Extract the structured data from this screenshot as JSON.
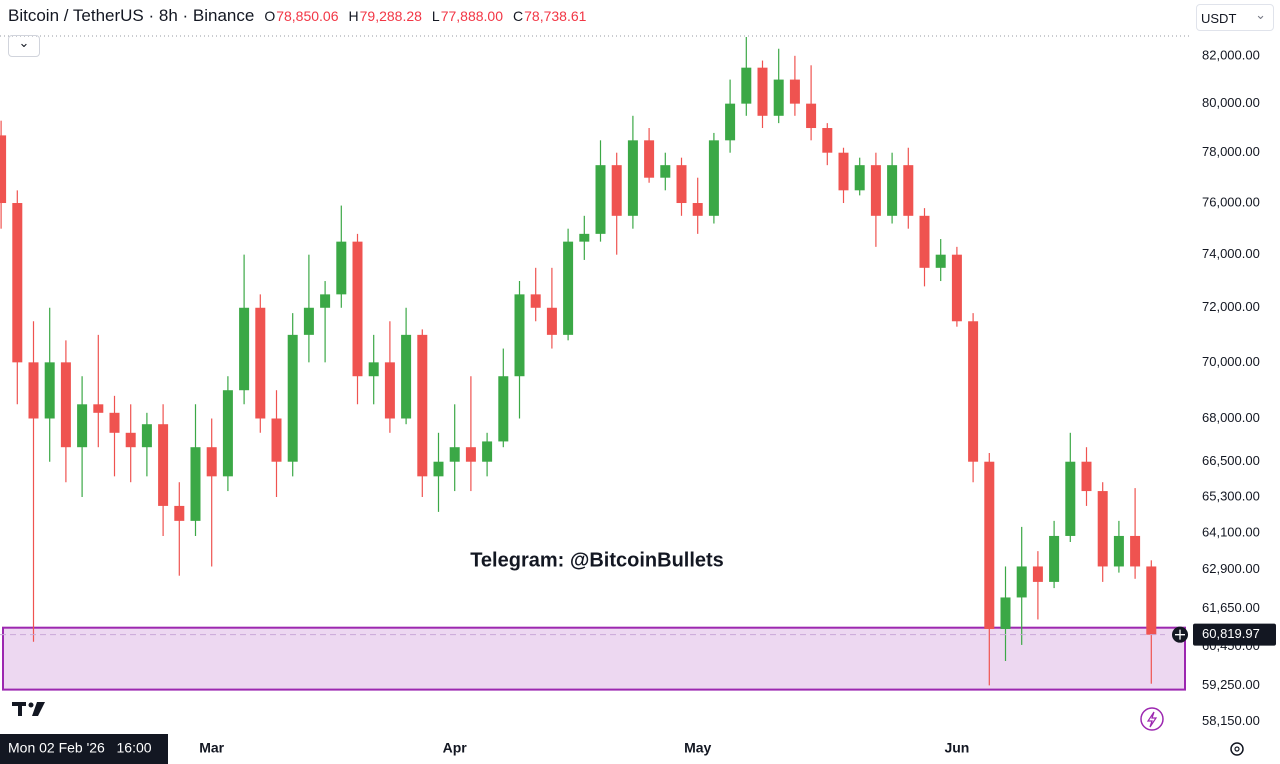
{
  "chart_data": {
    "type": "candlestick",
    "title": "Bitcoin / TetherUS · 8h · Binance",
    "ohlc_legend": [
      {
        "key": "O",
        "text": "78,850.06"
      },
      {
        "key": "H",
        "text": "79,288.28"
      },
      {
        "key": "L",
        "text": "77,888.00"
      },
      {
        "key": "C",
        "text": "78,738.61"
      }
    ],
    "currency": "USDT",
    "annotation": "Telegram: @BitcoinBullets",
    "crosshair_label": "Mon 02 Feb '26   16:00",
    "price_scale": "log",
    "up_color": "#3ba846",
    "down_color": "#ef5350",
    "categories": [
      null,
      null,
      null,
      null,
      null,
      null,
      null,
      null,
      null,
      null,
      null,
      null,
      null,
      "Mar",
      null,
      null,
      null,
      null,
      null,
      null,
      null,
      null,
      null,
      null,
      null,
      null,
      null,
      null,
      "Apr",
      null,
      null,
      null,
      null,
      null,
      null,
      null,
      null,
      null,
      null,
      null,
      null,
      null,
      null,
      "May",
      null,
      null,
      null,
      null,
      null,
      null,
      null,
      null,
      null,
      null,
      null,
      null,
      null,
      null,
      null,
      "Jun",
      null,
      null,
      null,
      null,
      null,
      null,
      null,
      null,
      null,
      null,
      null,
      null
    ],
    "open": [
      78700,
      76000,
      70000,
      68000,
      70000,
      67000,
      68500,
      68200,
      67500,
      67000,
      67800,
      65000,
      64500,
      67000,
      66000,
      69000,
      72000,
      68000,
      66500,
      71000,
      72000,
      72500,
      74500,
      69500,
      70000,
      68000,
      71000,
      66000,
      66500,
      67000,
      66500,
      67200,
      69500,
      72500,
      72000,
      71000,
      74500,
      74800,
      77500,
      75500,
      78500,
      77000,
      77500,
      76000,
      75500,
      78500,
      80000,
      81500,
      79500,
      81000,
      80000,
      79000,
      78000,
      76500,
      77500,
      75500,
      77500,
      75500,
      73500,
      74000,
      71500,
      66500,
      61000,
      62000,
      63000,
      62500,
      64000,
      66500,
      65500,
      63000,
      64000,
      63000
    ],
    "high": [
      79300,
      76500,
      71500,
      72000,
      70800,
      69500,
      71000,
      68800,
      68500,
      68200,
      68500,
      65800,
      68500,
      68000,
      69500,
      74000,
      72500,
      69000,
      71800,
      74000,
      73000,
      75900,
      74800,
      71000,
      71500,
      72000,
      71200,
      67500,
      68500,
      69500,
      67500,
      70500,
      73000,
      73500,
      73500,
      75000,
      75500,
      78500,
      78000,
      79500,
      79000,
      78000,
      77800,
      77000,
      78800,
      81000,
      82800,
      81800,
      82300,
      82000,
      81600,
      79200,
      78200,
      77800,
      78000,
      78000,
      78200,
      75800,
      74600,
      74300,
      71800,
      66800,
      63000,
      64300,
      63500,
      64500,
      67500,
      67000,
      65800,
      64500,
      65600,
      63200
    ],
    "low": [
      75000,
      68500,
      60600,
      66500,
      65800,
      65300,
      67000,
      66000,
      65800,
      66000,
      64000,
      62700,
      64000,
      63000,
      65500,
      68500,
      67500,
      65300,
      66000,
      70000,
      70000,
      72000,
      68500,
      68500,
      67500,
      67800,
      65300,
      64800,
      65500,
      65500,
      66000,
      67000,
      68000,
      71500,
      70500,
      70800,
      73800,
      74500,
      74000,
      75000,
      76800,
      76500,
      75500,
      74800,
      75200,
      78000,
      79500,
      79000,
      79200,
      79500,
      78500,
      77500,
      76000,
      76300,
      74300,
      75200,
      75000,
      72800,
      73000,
      71300,
      65800,
      59250,
      60000,
      60500,
      61300,
      62300,
      63800,
      65000,
      62500,
      62800,
      62600,
      59300
    ],
    "close": [
      76000,
      70000,
      68000,
      70000,
      67000,
      68500,
      68200,
      67500,
      67000,
      67800,
      65000,
      64500,
      67000,
      66000,
      69000,
      72000,
      68000,
      66500,
      71000,
      72000,
      72500,
      74500,
      69500,
      70000,
      68000,
      71000,
      66000,
      66500,
      67000,
      66500,
      67200,
      69500,
      72500,
      72000,
      71000,
      74500,
      74800,
      77500,
      75500,
      78500,
      77000,
      77500,
      76000,
      75500,
      78500,
      80000,
      81500,
      79500,
      81000,
      80000,
      79000,
      78000,
      76500,
      77500,
      75500,
      77500,
      75500,
      73500,
      74000,
      71500,
      66500,
      61000,
      62000,
      63000,
      62500,
      64000,
      66500,
      65500,
      63000,
      64000,
      63000,
      60820
    ],
    "ylim": [
      57900,
      83100
    ],
    "yticks": [
      {
        "value": 82000,
        "label": "82,000.00"
      },
      {
        "value": 80000,
        "label": "80,000.00"
      },
      {
        "value": 78000,
        "label": "78,000.00"
      },
      {
        "value": 76000,
        "label": "76,000.00"
      },
      {
        "value": 74000,
        "label": "74,000.00"
      },
      {
        "value": 72000,
        "label": "72,000.00"
      },
      {
        "value": 70000,
        "label": "70,000.00"
      },
      {
        "value": 68000,
        "label": "68,000.00"
      },
      {
        "value": 66500,
        "label": "66,500.00"
      },
      {
        "value": 65300,
        "label": "65,300.00"
      },
      {
        "value": 64100,
        "label": "64,100.00"
      },
      {
        "value": 62900,
        "label": "62,900.00"
      },
      {
        "value": 61650,
        "label": "61,650.00"
      },
      {
        "value": 60450,
        "label": "60,450.00"
      },
      {
        "value": 59250,
        "label": "59,250.00"
      },
      {
        "value": 58150,
        "label": "58,150.00"
      }
    ],
    "last_price": {
      "value": 60819.97,
      "label": "60,819.97"
    },
    "zone": {
      "low": 59120,
      "high": 61040,
      "color": "#9c27b0"
    }
  }
}
